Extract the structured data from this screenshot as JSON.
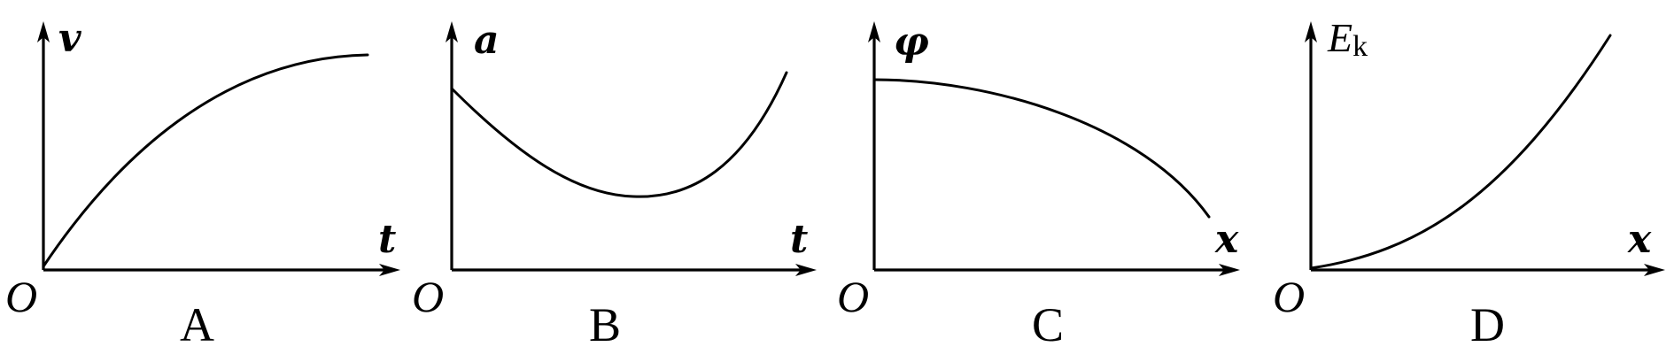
{
  "graphs": [
    {
      "id": "A",
      "caption": "A",
      "origin": "O",
      "y_label": "v",
      "x_label": "t",
      "curve_kind": "concave-increasing"
    },
    {
      "id": "B",
      "caption": "B",
      "origin": "O",
      "y_label": "a",
      "x_label": "t",
      "curve_kind": "decreasing-then-increasing"
    },
    {
      "id": "C",
      "caption": "C",
      "origin": "O",
      "y_label": "φ",
      "x_label": "x",
      "curve_kind": "concave-decreasing"
    },
    {
      "id": "D",
      "caption": "D",
      "origin": "O",
      "y_label": "E",
      "y_label_sub": "k",
      "x_label": "x",
      "curve_kind": "convex-increasing"
    }
  ]
}
